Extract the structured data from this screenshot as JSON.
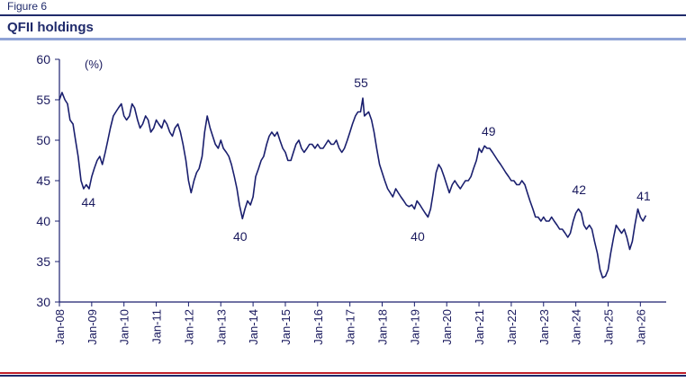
{
  "figure_label": "Figure 6",
  "title": "QFII holdings",
  "chart_data": {
    "type": "line",
    "unit_label": "(%)",
    "ylim": [
      30,
      60
    ],
    "yticks": [
      30,
      35,
      40,
      45,
      50,
      55,
      60
    ],
    "x_range": [
      2008.0,
      2026.8
    ],
    "xtick_labels": [
      "Jan-08",
      "Jan-09",
      "Jan-10",
      "Jan-11",
      "Jan-12",
      "Jan-13",
      "Jan-14",
      "Jan-15",
      "Jan-16",
      "Jan-17",
      "Jan-18",
      "Jan-19",
      "Jan-20",
      "Jan-21",
      "Jan-22",
      "Jan-23",
      "Jan-24",
      "Jan-25",
      "Jan-26"
    ],
    "grid": false,
    "line_color": "#1a1f6e",
    "series": [
      {
        "points": [
          [
            2008.0,
            55.0
          ],
          [
            2008.08,
            55.9
          ],
          [
            2008.17,
            55.0
          ],
          [
            2008.25,
            54.5
          ],
          [
            2008.33,
            52.5
          ],
          [
            2008.42,
            52.0
          ],
          [
            2008.5,
            50.0
          ],
          [
            2008.58,
            48.0
          ],
          [
            2008.67,
            45.0
          ],
          [
            2008.75,
            44.0
          ],
          [
            2008.83,
            44.5
          ],
          [
            2008.92,
            44.0
          ],
          [
            2009.0,
            45.5
          ],
          [
            2009.08,
            46.5
          ],
          [
            2009.17,
            47.5
          ],
          [
            2009.25,
            48.0
          ],
          [
            2009.33,
            47.0
          ],
          [
            2009.42,
            48.5
          ],
          [
            2009.5,
            50.0
          ],
          [
            2009.58,
            51.5
          ],
          [
            2009.67,
            53.0
          ],
          [
            2009.75,
            53.5
          ],
          [
            2009.83,
            54.0
          ],
          [
            2009.92,
            54.5
          ],
          [
            2010.0,
            53.0
          ],
          [
            2010.08,
            52.5
          ],
          [
            2010.17,
            53.0
          ],
          [
            2010.25,
            54.5
          ],
          [
            2010.33,
            54.0
          ],
          [
            2010.42,
            52.5
          ],
          [
            2010.5,
            51.5
          ],
          [
            2010.58,
            52.0
          ],
          [
            2010.67,
            53.0
          ],
          [
            2010.75,
            52.5
          ],
          [
            2010.83,
            51.0
          ],
          [
            2010.92,
            51.5
          ],
          [
            2011.0,
            52.5
          ],
          [
            2011.08,
            52.0
          ],
          [
            2011.17,
            51.5
          ],
          [
            2011.25,
            52.5
          ],
          [
            2011.33,
            52.0
          ],
          [
            2011.42,
            51.0
          ],
          [
            2011.5,
            50.5
          ],
          [
            2011.58,
            51.5
          ],
          [
            2011.67,
            52.0
          ],
          [
            2011.75,
            51.0
          ],
          [
            2011.83,
            49.5
          ],
          [
            2011.92,
            47.5
          ],
          [
            2012.0,
            45.0
          ],
          [
            2012.08,
            43.5
          ],
          [
            2012.17,
            45.0
          ],
          [
            2012.25,
            46.0
          ],
          [
            2012.33,
            46.5
          ],
          [
            2012.42,
            48.0
          ],
          [
            2012.5,
            51.0
          ],
          [
            2012.58,
            53.0
          ],
          [
            2012.67,
            51.5
          ],
          [
            2012.75,
            50.5
          ],
          [
            2012.83,
            49.5
          ],
          [
            2012.92,
            49.0
          ],
          [
            2013.0,
            50.0
          ],
          [
            2013.08,
            49.0
          ],
          [
            2013.17,
            48.5
          ],
          [
            2013.25,
            48.0
          ],
          [
            2013.33,
            47.0
          ],
          [
            2013.42,
            45.5
          ],
          [
            2013.5,
            44.0
          ],
          [
            2013.58,
            42.0
          ],
          [
            2013.67,
            40.3
          ],
          [
            2013.75,
            41.5
          ],
          [
            2013.83,
            42.5
          ],
          [
            2013.92,
            42.0
          ],
          [
            2014.0,
            43.0
          ],
          [
            2014.08,
            45.5
          ],
          [
            2014.17,
            46.5
          ],
          [
            2014.25,
            47.5
          ],
          [
            2014.33,
            48.0
          ],
          [
            2014.42,
            49.5
          ],
          [
            2014.5,
            50.5
          ],
          [
            2014.58,
            51.0
          ],
          [
            2014.67,
            50.5
          ],
          [
            2014.75,
            51.0
          ],
          [
            2014.83,
            50.0
          ],
          [
            2014.92,
            49.0
          ],
          [
            2015.0,
            48.5
          ],
          [
            2015.08,
            47.5
          ],
          [
            2015.17,
            47.5
          ],
          [
            2015.25,
            48.5
          ],
          [
            2015.33,
            49.5
          ],
          [
            2015.42,
            50.0
          ],
          [
            2015.5,
            49.0
          ],
          [
            2015.58,
            48.5
          ],
          [
            2015.67,
            49.0
          ],
          [
            2015.75,
            49.5
          ],
          [
            2015.83,
            49.5
          ],
          [
            2015.92,
            49.0
          ],
          [
            2016.0,
            49.5
          ],
          [
            2016.08,
            49.0
          ],
          [
            2016.17,
            49.0
          ],
          [
            2016.25,
            49.5
          ],
          [
            2016.33,
            50.0
          ],
          [
            2016.42,
            49.5
          ],
          [
            2016.5,
            49.5
          ],
          [
            2016.58,
            50.0
          ],
          [
            2016.67,
            49.0
          ],
          [
            2016.75,
            48.5
          ],
          [
            2016.83,
            49.0
          ],
          [
            2016.92,
            50.0
          ],
          [
            2017.0,
            51.0
          ],
          [
            2017.08,
            52.0
          ],
          [
            2017.17,
            53.0
          ],
          [
            2017.25,
            53.5
          ],
          [
            2017.33,
            53.5
          ],
          [
            2017.4,
            55.2
          ],
          [
            2017.45,
            53.0
          ],
          [
            2017.58,
            53.5
          ],
          [
            2017.67,
            52.5
          ],
          [
            2017.75,
            51.0
          ],
          [
            2017.83,
            49.0
          ],
          [
            2017.92,
            47.0
          ],
          [
            2018.0,
            46.0
          ],
          [
            2018.08,
            45.0
          ],
          [
            2018.17,
            44.0
          ],
          [
            2018.25,
            43.5
          ],
          [
            2018.33,
            43.0
          ],
          [
            2018.42,
            44.0
          ],
          [
            2018.5,
            43.5
          ],
          [
            2018.58,
            43.0
          ],
          [
            2018.67,
            42.5
          ],
          [
            2018.75,
            42.0
          ],
          [
            2018.83,
            41.8
          ],
          [
            2018.92,
            42.0
          ],
          [
            2019.0,
            41.5
          ],
          [
            2019.08,
            42.5
          ],
          [
            2019.17,
            42.0
          ],
          [
            2019.25,
            41.5
          ],
          [
            2019.33,
            41.0
          ],
          [
            2019.42,
            40.5
          ],
          [
            2019.5,
            41.5
          ],
          [
            2019.58,
            43.5
          ],
          [
            2019.67,
            46.0
          ],
          [
            2019.75,
            47.0
          ],
          [
            2019.83,
            46.5
          ],
          [
            2019.92,
            45.5
          ],
          [
            2020.0,
            44.5
          ],
          [
            2020.08,
            43.5
          ],
          [
            2020.17,
            44.5
          ],
          [
            2020.25,
            45.0
          ],
          [
            2020.33,
            44.5
          ],
          [
            2020.42,
            44.0
          ],
          [
            2020.5,
            44.5
          ],
          [
            2020.58,
            45.0
          ],
          [
            2020.67,
            45.0
          ],
          [
            2020.75,
            45.5
          ],
          [
            2020.83,
            46.5
          ],
          [
            2020.92,
            47.5
          ],
          [
            2021.0,
            49.0
          ],
          [
            2021.08,
            48.5
          ],
          [
            2021.17,
            49.3
          ],
          [
            2021.25,
            49.0
          ],
          [
            2021.33,
            49.0
          ],
          [
            2021.42,
            48.5
          ],
          [
            2021.5,
            48.0
          ],
          [
            2021.58,
            47.5
          ],
          [
            2021.67,
            47.0
          ],
          [
            2021.75,
            46.5
          ],
          [
            2021.83,
            46.0
          ],
          [
            2021.92,
            45.5
          ],
          [
            2022.0,
            45.0
          ],
          [
            2022.08,
            45.0
          ],
          [
            2022.17,
            44.5
          ],
          [
            2022.25,
            44.5
          ],
          [
            2022.33,
            45.0
          ],
          [
            2022.42,
            44.5
          ],
          [
            2022.5,
            43.5
          ],
          [
            2022.58,
            42.5
          ],
          [
            2022.67,
            41.5
          ],
          [
            2022.75,
            40.5
          ],
          [
            2022.83,
            40.5
          ],
          [
            2022.92,
            40.0
          ],
          [
            2023.0,
            40.5
          ],
          [
            2023.08,
            40.0
          ],
          [
            2023.17,
            40.0
          ],
          [
            2023.25,
            40.5
          ],
          [
            2023.33,
            40.0
          ],
          [
            2023.42,
            39.5
          ],
          [
            2023.5,
            39.0
          ],
          [
            2023.58,
            39.0
          ],
          [
            2023.67,
            38.5
          ],
          [
            2023.75,
            38.0
          ],
          [
            2023.83,
            38.5
          ],
          [
            2023.92,
            40.0
          ],
          [
            2024.0,
            41.0
          ],
          [
            2024.08,
            41.5
          ],
          [
            2024.17,
            41.0
          ],
          [
            2024.25,
            39.5
          ],
          [
            2024.33,
            39.0
          ],
          [
            2024.42,
            39.5
          ],
          [
            2024.5,
            39.0
          ],
          [
            2024.58,
            37.5
          ],
          [
            2024.67,
            36.0
          ],
          [
            2024.75,
            34.0
          ],
          [
            2024.83,
            33.0
          ],
          [
            2024.92,
            33.2
          ],
          [
            2025.0,
            34.0
          ],
          [
            2025.08,
            36.0
          ],
          [
            2025.17,
            38.0
          ],
          [
            2025.25,
            39.5
          ],
          [
            2025.33,
            39.0
          ],
          [
            2025.42,
            38.5
          ],
          [
            2025.5,
            39.0
          ],
          [
            2025.58,
            38.0
          ],
          [
            2025.67,
            36.5
          ],
          [
            2025.75,
            37.5
          ],
          [
            2025.83,
            39.5
          ],
          [
            2025.92,
            41.5
          ],
          [
            2026.0,
            40.5
          ],
          [
            2026.08,
            40.0
          ],
          [
            2026.17,
            40.7
          ]
        ]
      }
    ],
    "annotations": [
      {
        "text": "44",
        "x": 2008.9,
        "y": 44
      },
      {
        "text": "40",
        "x": 2013.6,
        "y": 40
      },
      {
        "text": "55",
        "x": 2017.4,
        "y": 55
      },
      {
        "text": "40",
        "x": 2019.1,
        "y": 40
      },
      {
        "text": "49",
        "x": 2021.3,
        "y": 49
      },
      {
        "text": "42",
        "x": 2024.1,
        "y": 42
      },
      {
        "text": "41",
        "x": 2026.1,
        "y": 41
      }
    ]
  }
}
